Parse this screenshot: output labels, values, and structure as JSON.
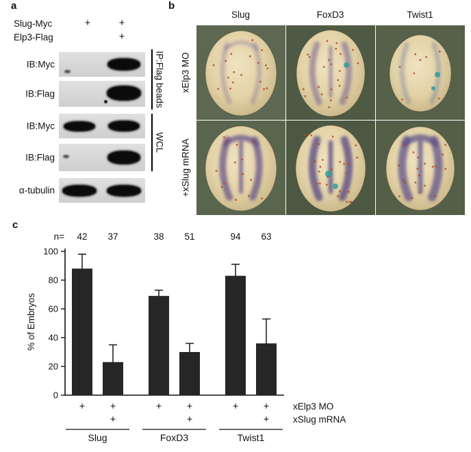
{
  "figure": {
    "panel_a_label": "a",
    "panel_b_label": "b",
    "panel_c_label": "c"
  },
  "panel_a": {
    "lane_headers": [
      {
        "label": "Slug-Myc",
        "lane1": "+",
        "lane2": "+"
      },
      {
        "label": "Elp3-Flag",
        "lane1": "",
        "lane2": "+"
      }
    ],
    "blots": [
      {
        "label": "IB:Myc",
        "lane1": "faint",
        "lane2": "strong"
      },
      {
        "label": "IB:Flag",
        "lane1": "none",
        "lane2": "strong"
      },
      {
        "label": "IB:Myc",
        "lane1": "strong",
        "lane2": "strong"
      },
      {
        "label": "IB:Flag",
        "lane1": "faint",
        "lane2": "strong"
      },
      {
        "label": "α-tubulin",
        "lane1": "strong",
        "lane2": "strong"
      }
    ],
    "brackets": [
      {
        "label": "IP:Flag beads"
      },
      {
        "label": "WCL"
      }
    ]
  },
  "panel_b": {
    "columns": [
      "Slug",
      "FoxD3",
      "Twist1"
    ],
    "rows": [
      "xElp3 MO",
      "+xSlug mRNA"
    ]
  },
  "chart_data": {
    "type": "bar",
    "title": "",
    "ylabel": "% of Embryos",
    "ylim": [
      0,
      100
    ],
    "yticks": [
      0,
      20,
      40,
      60,
      80,
      100
    ],
    "n_label": "n=",
    "n_values": [
      42,
      37,
      38,
      51,
      94,
      63
    ],
    "groups": [
      "Slug",
      "FoxD3",
      "Twist1"
    ],
    "bars": [
      {
        "group": "Slug",
        "xElp3_MO": "+",
        "xSlug_mRNA": "",
        "value": 88,
        "error": 10
      },
      {
        "group": "Slug",
        "xElp3_MO": "+",
        "xSlug_mRNA": "+",
        "value": 23,
        "error": 12
      },
      {
        "group": "FoxD3",
        "xElp3_MO": "+",
        "xSlug_mRNA": "",
        "value": 69,
        "error": 4
      },
      {
        "group": "FoxD3",
        "xElp3_MO": "+",
        "xSlug_mRNA": "+",
        "value": 30,
        "error": 6
      },
      {
        "group": "Twist1",
        "xElp3_MO": "+",
        "xSlug_mRNA": "",
        "value": 83,
        "error": 8
      },
      {
        "group": "Twist1",
        "xElp3_MO": "+",
        "xSlug_mRNA": "+",
        "value": 36,
        "error": 17
      }
    ],
    "condition_rows": [
      {
        "label": "xElp3 MO",
        "marks": [
          "+",
          "+",
          "+",
          "+",
          "+",
          "+"
        ]
      },
      {
        "label": "xSlug mRNA",
        "marks": [
          "",
          "+",
          "",
          "+",
          "",
          "+"
        ]
      }
    ],
    "bar_color": "#262626",
    "axis_color": "#111111",
    "grid": false,
    "legend": "none"
  }
}
